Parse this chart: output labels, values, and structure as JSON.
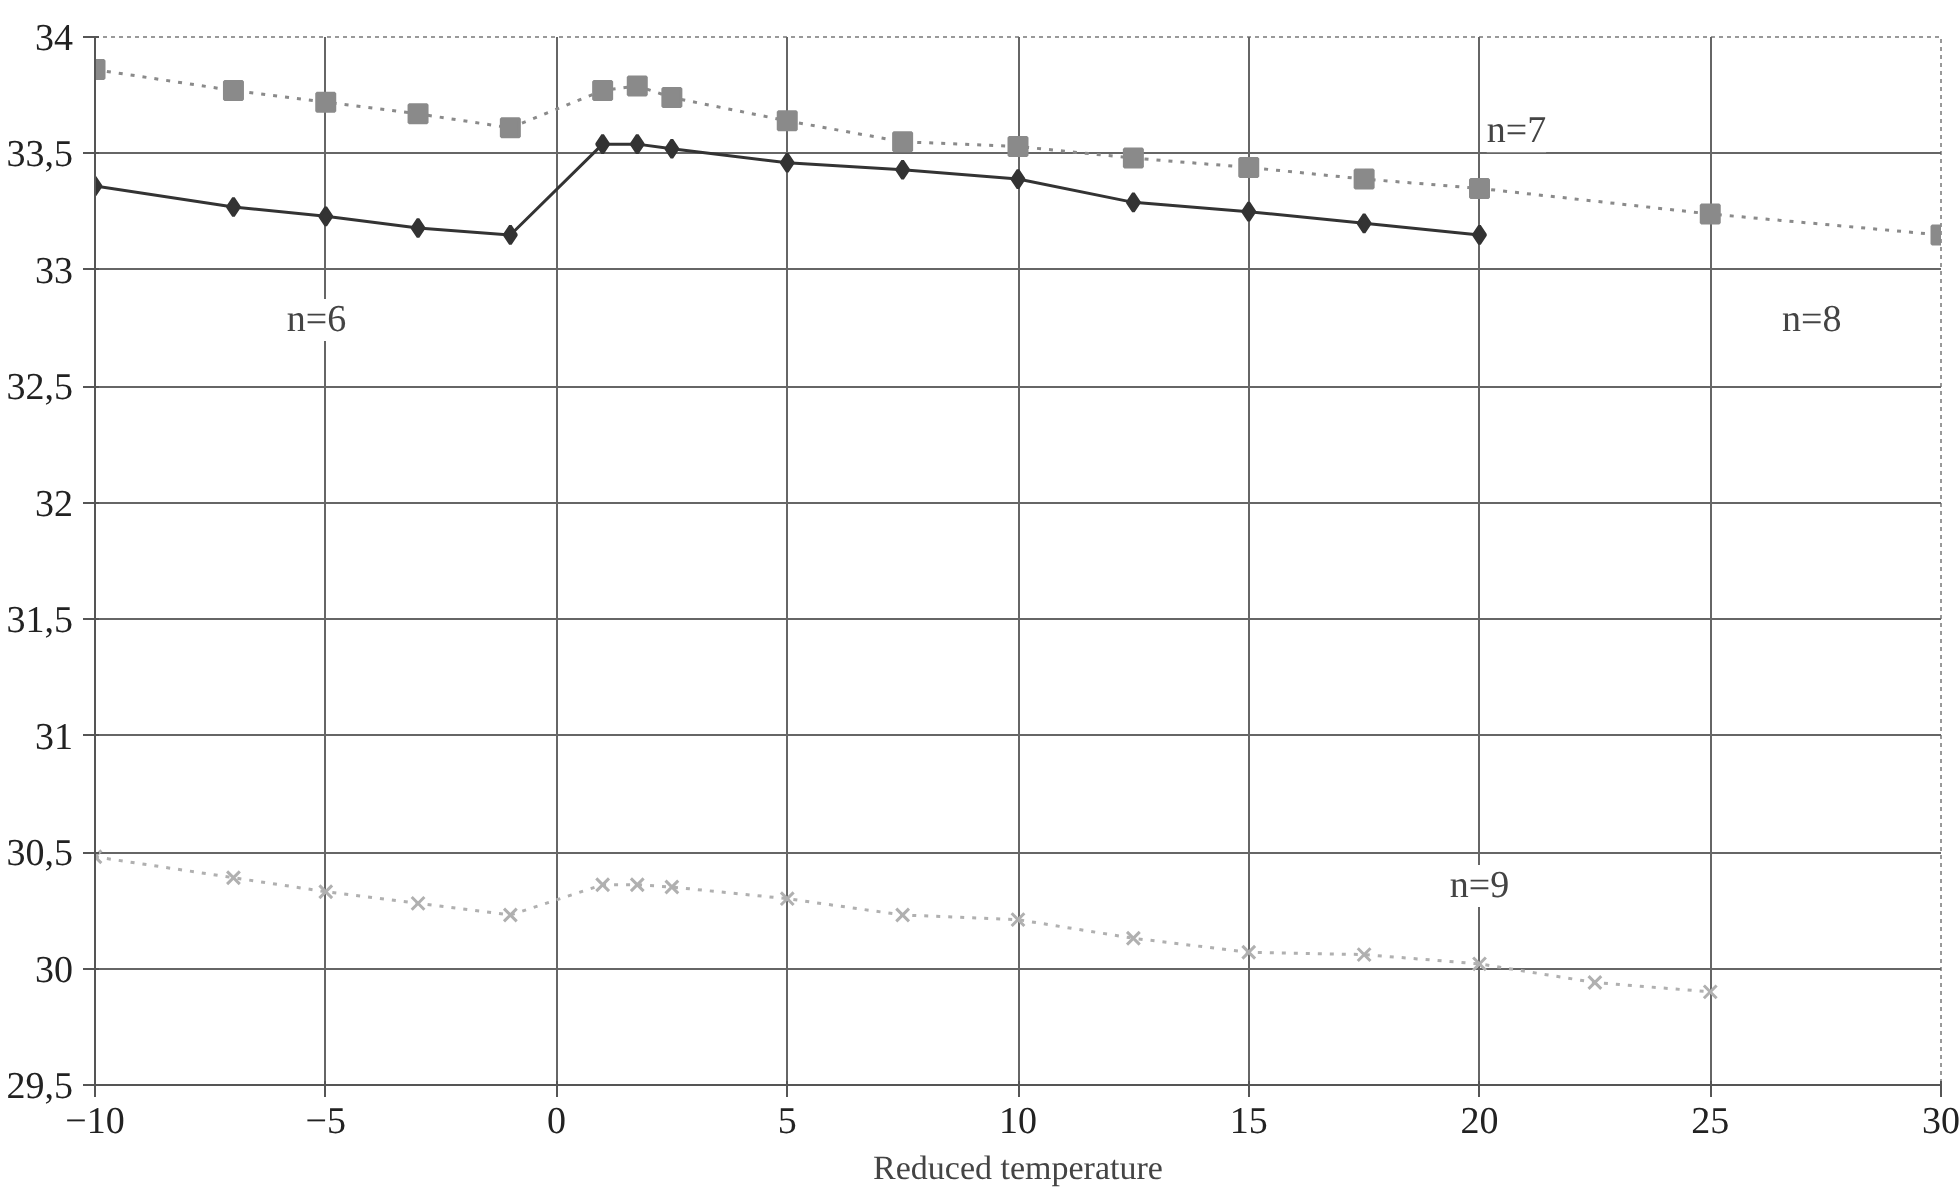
{
  "chart_data": {
    "type": "line",
    "xlabel": "Reduced temperature",
    "xlim": [
      -10,
      30
    ],
    "xticks": [
      -10,
      -5,
      0,
      5,
      10,
      15,
      20,
      25,
      30
    ],
    "ylim": [
      29.5,
      34
    ],
    "yticks": [
      {
        "value": 29.5,
        "label": "29,5"
      },
      30,
      {
        "value": 30.5,
        "label": "30,5"
      },
      31,
      {
        "value": 31.5,
        "label": "31,5"
      },
      32,
      {
        "value": 32.5,
        "label": "32,5"
      },
      33,
      {
        "value": 33.5,
        "label": "33,5"
      },
      34
    ],
    "grid": true,
    "series": [
      {
        "color": "#333333",
        "marker": "diamond",
        "line_style": "solid",
        "x": [
          -10,
          -7,
          -5,
          -3,
          -1,
          1,
          1.75,
          2.5,
          5,
          7.5,
          10,
          12.5,
          15,
          17.5,
          20
        ],
        "values": [
          33.36,
          33.27,
          33.23,
          33.18,
          33.15,
          33.54,
          33.54,
          33.52,
          33.46,
          33.43,
          33.39,
          33.29,
          33.25,
          33.2,
          33.15
        ]
      },
      {
        "color": "#8a8a8a",
        "marker": "square",
        "line_style": "dotted",
        "x": [
          -10,
          -7,
          -5,
          -3,
          -1,
          1,
          1.75,
          2.5,
          5,
          7.5,
          10,
          12.5,
          15,
          17.5,
          20,
          25,
          30
        ],
        "values": [
          33.86,
          33.77,
          33.72,
          33.67,
          33.61,
          33.77,
          33.79,
          33.74,
          33.64,
          33.55,
          33.53,
          33.48,
          33.44,
          33.39,
          33.35,
          33.24,
          33.15
        ]
      },
      {
        "color": "#b0b0b0",
        "marker": "cross",
        "line_style": "dotted",
        "x": [
          -10,
          -7,
          -5,
          -3,
          -1,
          1,
          1.75,
          2.5,
          5,
          7.5,
          10,
          12.5,
          15,
          17.5,
          20,
          22.5,
          25
        ],
        "values": [
          30.48,
          30.39,
          30.33,
          30.28,
          30.23,
          30.36,
          30.36,
          30.35,
          30.3,
          30.23,
          30.21,
          30.13,
          30.07,
          30.06,
          30.02,
          29.94,
          29.9
        ]
      }
    ],
    "annotations": [
      "n=6",
      "n=7",
      "n=8",
      "n=9"
    ]
  }
}
